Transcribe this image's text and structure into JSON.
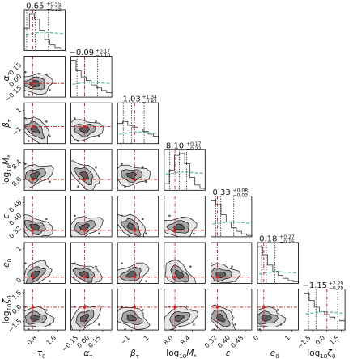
{
  "chart_data": {
    "type": "corner",
    "parameters": [
      {
        "key": "tau0",
        "label": "τ0",
        "display": "τ",
        "sub": "0",
        "prefix": "",
        "title": "0.65",
        "err_plus": "0.55",
        "err_minus": "0.35",
        "ticks": [
          "0.8",
          "1.6"
        ],
        "range": [
          0.2,
          1.9
        ],
        "median": 0.65,
        "ci": [
          0.3,
          1.2
        ],
        "truth": 0.55
      },
      {
        "key": "alpha_tau",
        "label": "ατ",
        "display": "α",
        "sub": "τ",
        "prefix": "",
        "title": "−0.09",
        "err_plus": "0.17",
        "err_minus": "0.10",
        "ticks": [
          "−0.15",
          "0.00",
          "0.15"
        ],
        "range": [
          -0.27,
          0.27
        ],
        "median": -0.09,
        "ci": [
          -0.19,
          0.08
        ],
        "truth": -0.09
      },
      {
        "key": "beta_tau",
        "label": "βτ",
        "display": "β",
        "sub": "τ",
        "prefix": "",
        "title": "−1.03",
        "err_plus": "1.34",
        "err_minus": "0.87",
        "ticks": [
          "−1",
          "1"
        ],
        "range": [
          -2.5,
          1.8
        ],
        "median": -1.03,
        "ci": [
          -1.9,
          0.3
        ],
        "truth": -0.7
      },
      {
        "key": "log10M",
        "label": "log10M*",
        "display": "M",
        "sub": "*",
        "prefix": "log10",
        "title": "8.10",
        "err_plus": "0.17",
        "err_minus": "0.22",
        "ticks": [
          "8.0",
          "8.4"
        ],
        "range": [
          7.75,
          8.7
        ],
        "median": 8.1,
        "ci": [
          7.88,
          8.27
        ],
        "truth": 8.0
      },
      {
        "key": "epsilon",
        "label": "ε",
        "display": "ε",
        "sub": "",
        "prefix": "",
        "title": "0.33",
        "err_plus": "0.08",
        "err_minus": "0.03",
        "ticks": [
          "0.32",
          "0.40",
          "0.48"
        ],
        "range": [
          0.27,
          0.52
        ],
        "median": 0.33,
        "ci": [
          0.3,
          0.41
        ],
        "truth": 0.31
      },
      {
        "key": "e0",
        "label": "e0",
        "display": "e",
        "sub": "0",
        "prefix": "",
        "title": "0.18",
        "err_plus": "0.27",
        "err_minus": "0.15",
        "ticks": [
          "0",
          "1"
        ],
        "range": [
          -0.1,
          1.2
        ],
        "median": 0.18,
        "ci": [
          0.03,
          0.45
        ],
        "truth": 0.1
      },
      {
        "key": "log10zeta0",
        "label": "log10ζ0",
        "display": "ζ",
        "sub": "0",
        "prefix": "log10",
        "title": "−1.15",
        "err_plus": "2.29",
        "err_minus": "0.79",
        "ticks": [
          "−1.5",
          "0.0",
          "1.5"
        ],
        "range": [
          -2.4,
          1.9
        ],
        "median": -1.15,
        "ci": [
          -1.94,
          1.14
        ],
        "truth": 0.0
      }
    ],
    "diag_hist": [
      [
        0.6,
        1.0,
        0.85,
        0.55,
        0.3,
        0.15,
        0.08,
        0.04
      ],
      [
        1.0,
        0.72,
        0.55,
        0.45,
        0.33,
        0.25,
        0.18,
        0.12
      ],
      [
        0.55,
        0.6,
        0.5,
        0.45,
        0.4,
        0.33,
        0.26,
        0.2
      ],
      [
        0.18,
        0.55,
        0.95,
        1.0,
        0.72,
        0.35,
        0.14,
        0.05
      ],
      [
        1.0,
        0.88,
        0.6,
        0.4,
        0.25,
        0.15,
        0.08,
        0.04
      ],
      [
        1.0,
        0.78,
        0.5,
        0.33,
        0.22,
        0.14,
        0.08,
        0.05
      ],
      [
        1.0,
        0.8,
        0.62,
        0.5,
        0.42,
        0.35,
        0.3,
        0.25
      ]
    ],
    "truth_color": "#d62728",
    "prior_color": "#66c2a5",
    "hist_color": "#333333",
    "quantile_style": "dotted",
    "contour_fill": [
      "#e6e6e6",
      "#a8a8a8",
      "#5e5e5e"
    ]
  }
}
